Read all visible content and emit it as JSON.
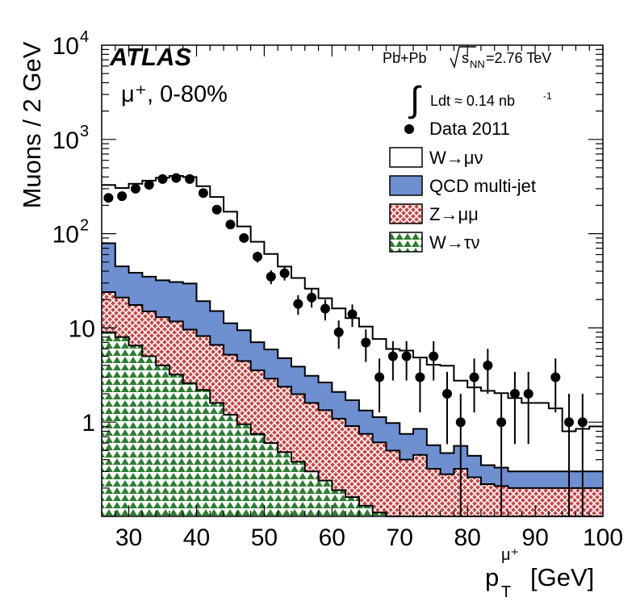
{
  "chart_data": {
    "type": "histogram",
    "xlabel": "p",
    "xlabel_sub": "T",
    "xlabel_sup": "μ⁺",
    "xlabel_unit": "[GeV]",
    "ylabel": "Muons / 2 GeV",
    "xlim": [
      26,
      100
    ],
    "ylim": [
      0.1,
      10000
    ],
    "yscale": "log",
    "x_ticks": [
      30,
      40,
      50,
      60,
      70,
      80,
      90,
      100
    ],
    "y_ticks": [
      {
        "value": 1,
        "label": "1"
      },
      {
        "value": 10,
        "label": "10"
      },
      {
        "value": 100,
        "label": "10",
        "exp": "2"
      },
      {
        "value": 1000,
        "label": "10",
        "exp": "3"
      },
      {
        "value": 10000,
        "label": "10",
        "exp": "4"
      }
    ],
    "bin_edges": [
      26,
      28,
      30,
      32,
      34,
      36,
      38,
      40,
      42,
      44,
      46,
      48,
      50,
      52,
      54,
      56,
      58,
      60,
      62,
      64,
      66,
      68,
      70,
      72,
      74,
      76,
      78,
      80,
      82,
      84,
      86,
      88,
      90,
      92,
      94,
      96,
      98,
      100
    ],
    "series": [
      {
        "key": "wtaunu",
        "name": "W→τν",
        "color": "#2e7d32",
        "pattern": "triangles",
        "values": [
          9,
          8,
          6.5,
          5,
          4,
          3.2,
          2.6,
          2.2,
          1.6,
          1.2,
          0.95,
          0.75,
          0.6,
          0.48,
          0.38,
          0.3,
          0.24,
          0.19,
          0.16,
          0.13,
          0.11,
          0.1,
          0.1,
          0.1,
          0.1,
          0.1,
          0.1,
          0.1,
          0.1,
          0.1,
          0.1,
          0.1,
          0.1,
          0.1,
          0.1,
          0.1,
          0.1
        ]
      },
      {
        "key": "zmumu",
        "name": "Z→μμ",
        "color": "#cc4444",
        "pattern": "crosshatch",
        "values": [
          15,
          13,
          11,
          10,
          9,
          8.5,
          7,
          6,
          5,
          4,
          3.5,
          2.8,
          2.3,
          1.9,
          1.6,
          1.3,
          1.1,
          0.9,
          0.75,
          0.62,
          0.5,
          0.4,
          0.3,
          0.35,
          0.22,
          0.18,
          0.22,
          0.16,
          0.12,
          0.11,
          0.1,
          0.1,
          0.1,
          0.1,
          0.1,
          0.1,
          0.1
        ]
      },
      {
        "key": "qcd",
        "name": "QCD multi-jet",
        "color": "#6e8fd0",
        "pattern": "solid",
        "values": [
          55,
          24,
          21,
          20,
          19,
          19,
          20,
          11,
          8.5,
          6,
          5,
          3.5,
          3,
          2.4,
          1.9,
          1.5,
          1.3,
          1,
          0.8,
          0.58,
          0.52,
          0.48,
          0.35,
          0.4,
          0.25,
          0.19,
          0.24,
          0.18,
          0.13,
          0.12,
          0.1,
          0.1,
          0.1,
          0.1,
          0.1,
          0.1,
          0.1
        ]
      },
      {
        "key": "wmunu",
        "name": "W→μν",
        "color": "#ffffff",
        "pattern": "outline",
        "values": [
          250,
          260,
          300,
          330,
          360,
          380,
          370,
          300,
          230,
          160,
          110,
          75,
          55,
          40,
          30,
          23,
          18,
          14,
          11,
          9,
          6.5,
          5,
          5,
          4,
          3.5,
          3.5,
          2.2,
          1.9,
          1.8,
          1.7,
          1.5,
          1.3,
          1.3,
          1.1,
          0.5,
          0.55,
          0.6
        ]
      }
    ],
    "data_points": {
      "name": "Data 2011",
      "x": [
        27,
        29,
        31,
        33,
        35,
        37,
        39,
        41,
        43,
        45,
        47,
        49,
        51,
        53,
        55,
        57,
        59,
        61,
        63,
        65,
        67,
        69,
        71,
        73,
        75,
        77,
        79,
        81,
        83,
        85,
        87,
        89,
        93,
        95,
        97
      ],
      "y": [
        240,
        250,
        300,
        330,
        380,
        390,
        380,
        270,
        180,
        125,
        90,
        57,
        35,
        38,
        18,
        21,
        16,
        9,
        14,
        7,
        3,
        5,
        5,
        3,
        5,
        2,
        1,
        3,
        4,
        1,
        2,
        2,
        3,
        1,
        1
      ]
    },
    "legend_position": "top-right"
  },
  "annotations": {
    "experiment": "ATLAS",
    "charge_label": "μ⁺, 0-80%",
    "collision": "Pb+Pb",
    "sqrt_s": "s",
    "sqrt_s_sub": "NN",
    "energy": "=2.76 TeV",
    "lumi_prefix": "Ldt ≈ 0.14 nb",
    "lumi_exp": "-1",
    "integral_symbol": "∫"
  },
  "colors": {
    "qcd": "#6e8fd0",
    "zmumu": "#cc4444",
    "wtaunu": "#2e7d32",
    "background": "#ffffff",
    "axis": "#000000"
  }
}
